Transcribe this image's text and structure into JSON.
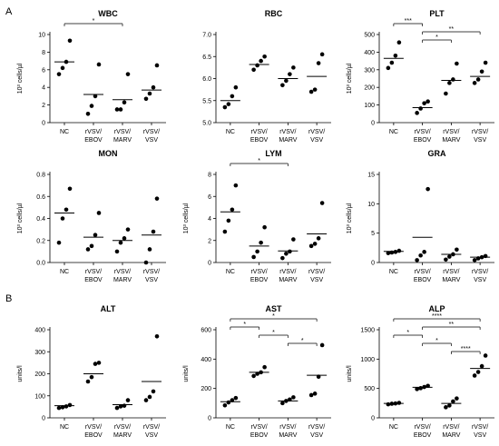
{
  "sections": [
    "A",
    "B"
  ],
  "categories": [
    "NC",
    "rVSV/\nEBOV",
    "rVSV/\nMARV",
    "rVSV/\nVSV"
  ],
  "chart_data": [
    {
      "type": "scatter",
      "title": "WBC",
      "ylabel": "10³ cells/µl",
      "ylim": [
        0,
        10
      ],
      "yticks": [
        0,
        2,
        4,
        6,
        8,
        10
      ],
      "points": [
        [
          5.5,
          6.2,
          6.9,
          9.3
        ],
        [
          1.0,
          1.9,
          3.0,
          6.6
        ],
        [
          1.5,
          1.5,
          2.3,
          5.5
        ],
        [
          2.7,
          3.3,
          4.0,
          6.5
        ]
      ],
      "means": [
        6.9,
        3.2,
        2.6,
        3.7
      ],
      "sig": [
        {
          "a": 0,
          "b": 2,
          "label": "*"
        }
      ]
    },
    {
      "type": "scatter",
      "title": "RBC",
      "ylabel": "",
      "ylim": [
        5.0,
        7.0
      ],
      "yticks": [
        5.0,
        5.5,
        6.0,
        6.5,
        7.0
      ],
      "points": [
        [
          5.35,
          5.42,
          5.6,
          5.8
        ],
        [
          6.2,
          6.3,
          6.4,
          6.5
        ],
        [
          5.85,
          5.95,
          6.1,
          6.25
        ],
        [
          5.7,
          5.75,
          6.35,
          6.55
        ]
      ],
      "means": [
        5.5,
        6.32,
        6.0,
        6.05
      ],
      "sig": []
    },
    {
      "type": "scatter",
      "title": "PLT",
      "ylabel": "10³ cells/µl",
      "ylim": [
        0,
        500
      ],
      "yticks": [
        0,
        100,
        200,
        300,
        400,
        500
      ],
      "points": [
        [
          310,
          340,
          380,
          455
        ],
        [
          55,
          80,
          110,
          120
        ],
        [
          165,
          225,
          245,
          335
        ],
        [
          225,
          245,
          290,
          340
        ]
      ],
      "means": [
        365,
        85,
        240,
        262
      ],
      "sig": [
        {
          "a": 0,
          "b": 1,
          "label": "***"
        },
        {
          "a": 1,
          "b": 3,
          "label": "**"
        },
        {
          "a": 1,
          "b": 2,
          "label": "*"
        }
      ]
    },
    {
      "type": "scatter",
      "title": "MON",
      "ylabel": "10³ cells/µl",
      "ylim": [
        0,
        0.8
      ],
      "yticks": [
        0.0,
        0.2,
        0.4,
        0.6,
        0.8
      ],
      "points": [
        [
          0.18,
          0.4,
          0.48,
          0.67
        ],
        [
          0.12,
          0.15,
          0.25,
          0.45
        ],
        [
          0.1,
          0.18,
          0.22,
          0.3
        ],
        [
          0.0,
          0.12,
          0.28,
          0.58
        ]
      ],
      "means": [
        0.45,
        0.23,
        0.2,
        0.25
      ],
      "sig": []
    },
    {
      "type": "scatter",
      "title": "LYM",
      "ylabel": "10³ cells/µl",
      "ylim": [
        0,
        8
      ],
      "yticks": [
        0,
        2,
        4,
        6,
        8
      ],
      "points": [
        [
          2.8,
          3.8,
          4.8,
          7.0
        ],
        [
          0.5,
          1.0,
          1.8,
          3.2
        ],
        [
          0.4,
          0.8,
          1.0,
          2.1
        ],
        [
          1.5,
          1.7,
          2.2,
          5.4
        ]
      ],
      "means": [
        4.6,
        1.5,
        1.05,
        2.6
      ],
      "sig": [
        {
          "a": 0,
          "b": 2,
          "label": "*"
        }
      ]
    },
    {
      "type": "scatter",
      "title": "GRA",
      "ylabel": "10³ cells/µl",
      "ylim": [
        0,
        15
      ],
      "yticks": [
        0,
        5,
        10,
        15
      ],
      "points": [
        [
          1.6,
          1.7,
          1.8,
          2.0
        ],
        [
          0.4,
          1.2,
          1.8,
          12.5
        ],
        [
          0.5,
          1.0,
          1.4,
          2.2
        ],
        [
          0.4,
          0.7,
          0.9,
          1.1
        ]
      ],
      "means": [
        1.9,
        4.3,
        1.4,
        0.9
      ],
      "sig": []
    },
    {
      "type": "scatter",
      "title": "ALT",
      "ylabel": "units/l",
      "ylim": [
        0,
        400
      ],
      "yticks": [
        0,
        100,
        200,
        300,
        400
      ],
      "points": [
        [
          45,
          48,
          52,
          58
        ],
        [
          165,
          185,
          245,
          250
        ],
        [
          45,
          52,
          55,
          80
        ],
        [
          80,
          95,
          120,
          370
        ]
      ],
      "means": [
        55,
        200,
        60,
        165
      ],
      "sig": []
    },
    {
      "type": "scatter",
      "title": "AST",
      "ylabel": "units/l",
      "ylim": [
        0,
        600
      ],
      "yticks": [
        0,
        200,
        400,
        600
      ],
      "points": [
        [
          85,
          105,
          120,
          135
        ],
        [
          285,
          300,
          310,
          345
        ],
        [
          100,
          115,
          125,
          140
        ],
        [
          155,
          165,
          280,
          495
        ]
      ],
      "means": [
        110,
        310,
        115,
        290
      ],
      "sig": [
        {
          "a": 0,
          "b": 3,
          "label": "*"
        },
        {
          "a": 0,
          "b": 1,
          "label": "*"
        },
        {
          "a": 1,
          "b": 2,
          "label": "*"
        },
        {
          "a": 2,
          "b": 3,
          "label": "*"
        }
      ]
    },
    {
      "type": "scatter",
      "title": "ALP",
      "ylabel": "units/l",
      "ylim": [
        0,
        1500
      ],
      "yticks": [
        0,
        500,
        1000,
        1500
      ],
      "points": [
        [
          230,
          240,
          245,
          255
        ],
        [
          490,
          505,
          525,
          545
        ],
        [
          180,
          210,
          280,
          330
        ],
        [
          720,
          780,
          880,
          1060
        ]
      ],
      "means": [
        245,
        520,
        245,
        840
      ],
      "sig": [
        {
          "a": 0,
          "b": 3,
          "label": "****"
        },
        {
          "a": 1,
          "b": 3,
          "label": "**"
        },
        {
          "a": 0,
          "b": 1,
          "label": "*"
        },
        {
          "a": 1,
          "b": 2,
          "label": "*"
        },
        {
          "a": 2,
          "b": 3,
          "label": "****"
        }
      ]
    }
  ]
}
